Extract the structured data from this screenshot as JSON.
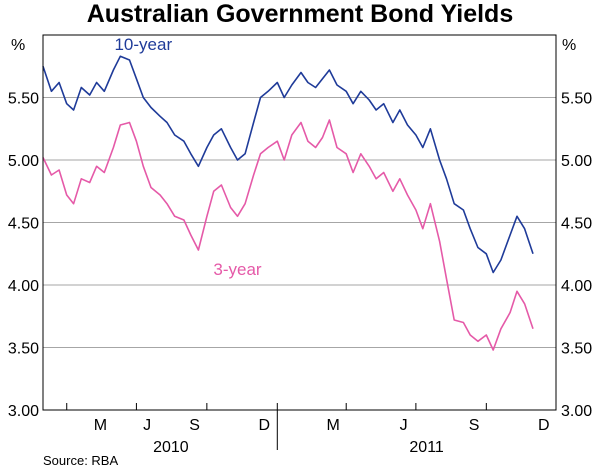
{
  "chart_data": {
    "type": "line",
    "title": "Australian Government Bond Yields",
    "unit_left": "%",
    "unit_right": "%",
    "source": "Source: RBA",
    "ylim": [
      3.0,
      6.0
    ],
    "yticks": [
      3.0,
      3.5,
      4.0,
      4.5,
      5.0,
      5.5
    ],
    "ytick_labels": [
      "3.00",
      "3.50",
      "4.00",
      "4.50",
      "5.00",
      "5.50"
    ],
    "x_start": "2010-03-01",
    "x_end": "2011-12-31",
    "month_labels": [
      {
        "label": "M",
        "date": "2010-05-15"
      },
      {
        "label": "J",
        "date": "2010-07-15"
      },
      {
        "label": "S",
        "date": "2010-09-15"
      },
      {
        "label": "D",
        "date": "2010-12-15"
      },
      {
        "label": "M",
        "date": "2011-03-15"
      },
      {
        "label": "J",
        "date": "2011-06-15"
      },
      {
        "label": "S",
        "date": "2011-09-15"
      },
      {
        "label": "D",
        "date": "2011-12-15"
      }
    ],
    "quarter_ticks": [
      "2010-04-01",
      "2010-07-01",
      "2010-10-01",
      "2011-01-01",
      "2011-04-01",
      "2011-07-01",
      "2011-10-01"
    ],
    "year_labels": [
      {
        "label": "2010",
        "date": "2010-08-15"
      },
      {
        "label": "2011",
        "date": "2011-07-15"
      }
    ],
    "year_divider": "2011-01-01",
    "colors": {
      "ten_year": "#1f3b99",
      "three_year": "#e55aa8",
      "grid": "#a6a6a6"
    },
    "series": [
      {
        "name": "10-year",
        "label_date": "2010-07-10",
        "label_value": 5.88,
        "x": [
          "2010-03-01",
          "2010-03-12",
          "2010-03-22",
          "2010-04-01",
          "2010-04-10",
          "2010-04-20",
          "2010-05-01",
          "2010-05-10",
          "2010-05-20",
          "2010-06-01",
          "2010-06-10",
          "2010-06-22",
          "2010-07-01",
          "2010-07-10",
          "2010-07-20",
          "2010-08-01",
          "2010-08-10",
          "2010-08-20",
          "2010-09-01",
          "2010-09-10",
          "2010-09-20",
          "2010-10-01",
          "2010-10-10",
          "2010-10-20",
          "2010-11-01",
          "2010-11-10",
          "2010-11-20",
          "2010-12-01",
          "2010-12-10",
          "2010-12-20",
          "2011-01-01",
          "2011-01-10",
          "2011-01-20",
          "2011-02-01",
          "2011-02-10",
          "2011-02-20",
          "2011-03-01",
          "2011-03-10",
          "2011-03-20",
          "2011-04-01",
          "2011-04-10",
          "2011-04-20",
          "2011-05-01",
          "2011-05-10",
          "2011-05-20",
          "2011-06-01",
          "2011-06-10",
          "2011-06-20",
          "2011-07-01",
          "2011-07-10",
          "2011-07-20",
          "2011-08-01",
          "2011-08-10",
          "2011-08-20",
          "2011-09-01",
          "2011-09-10",
          "2011-09-20",
          "2011-10-01",
          "2011-10-10",
          "2011-10-20",
          "2011-11-01",
          "2011-11-10",
          "2011-11-20",
          "2011-12-01"
        ],
        "values": [
          5.75,
          5.55,
          5.62,
          5.45,
          5.4,
          5.58,
          5.52,
          5.62,
          5.55,
          5.72,
          5.83,
          5.8,
          5.65,
          5.5,
          5.42,
          5.35,
          5.3,
          5.2,
          5.15,
          5.05,
          4.95,
          5.1,
          5.2,
          5.25,
          5.1,
          5.0,
          5.05,
          5.3,
          5.5,
          5.55,
          5.62,
          5.5,
          5.6,
          5.7,
          5.62,
          5.58,
          5.65,
          5.72,
          5.6,
          5.55,
          5.45,
          5.55,
          5.48,
          5.4,
          5.45,
          5.3,
          5.4,
          5.28,
          5.2,
          5.1,
          5.25,
          5.0,
          4.85,
          4.65,
          4.6,
          4.45,
          4.3,
          4.25,
          4.1,
          4.2,
          4.4,
          4.55,
          4.45,
          4.25
        ]
      },
      {
        "name": "3-year",
        "label_date": "2010-11-10",
        "label_value": 4.08,
        "x": [
          "2010-03-01",
          "2010-03-12",
          "2010-03-22",
          "2010-04-01",
          "2010-04-10",
          "2010-04-20",
          "2010-05-01",
          "2010-05-10",
          "2010-05-20",
          "2010-06-01",
          "2010-06-10",
          "2010-06-22",
          "2010-07-01",
          "2010-07-10",
          "2010-07-20",
          "2010-08-01",
          "2010-08-10",
          "2010-08-20",
          "2010-09-01",
          "2010-09-10",
          "2010-09-20",
          "2010-10-01",
          "2010-10-10",
          "2010-10-20",
          "2010-11-01",
          "2010-11-10",
          "2010-11-20",
          "2010-12-01",
          "2010-12-10",
          "2010-12-20",
          "2011-01-01",
          "2011-01-10",
          "2011-01-20",
          "2011-02-01",
          "2011-02-10",
          "2011-02-20",
          "2011-03-01",
          "2011-03-10",
          "2011-03-20",
          "2011-04-01",
          "2011-04-10",
          "2011-04-20",
          "2011-05-01",
          "2011-05-10",
          "2011-05-20",
          "2011-06-01",
          "2011-06-10",
          "2011-06-20",
          "2011-07-01",
          "2011-07-10",
          "2011-07-20",
          "2011-08-01",
          "2011-08-10",
          "2011-08-20",
          "2011-09-01",
          "2011-09-10",
          "2011-09-20",
          "2011-10-01",
          "2011-10-10",
          "2011-10-20",
          "2011-11-01",
          "2011-11-10",
          "2011-11-20",
          "2011-12-01"
        ],
        "values": [
          5.02,
          4.88,
          4.92,
          4.72,
          4.65,
          4.85,
          4.82,
          4.95,
          4.9,
          5.1,
          5.28,
          5.3,
          5.15,
          4.95,
          4.78,
          4.72,
          4.65,
          4.55,
          4.52,
          4.4,
          4.28,
          4.55,
          4.75,
          4.8,
          4.62,
          4.55,
          4.65,
          4.88,
          5.05,
          5.1,
          5.15,
          5.0,
          5.2,
          5.3,
          5.15,
          5.1,
          5.18,
          5.32,
          5.1,
          5.05,
          4.9,
          5.05,
          4.95,
          4.85,
          4.9,
          4.75,
          4.85,
          4.72,
          4.6,
          4.45,
          4.65,
          4.35,
          4.05,
          3.72,
          3.7,
          3.6,
          3.55,
          3.6,
          3.48,
          3.65,
          3.78,
          3.95,
          3.85,
          3.65
        ]
      }
    ]
  }
}
